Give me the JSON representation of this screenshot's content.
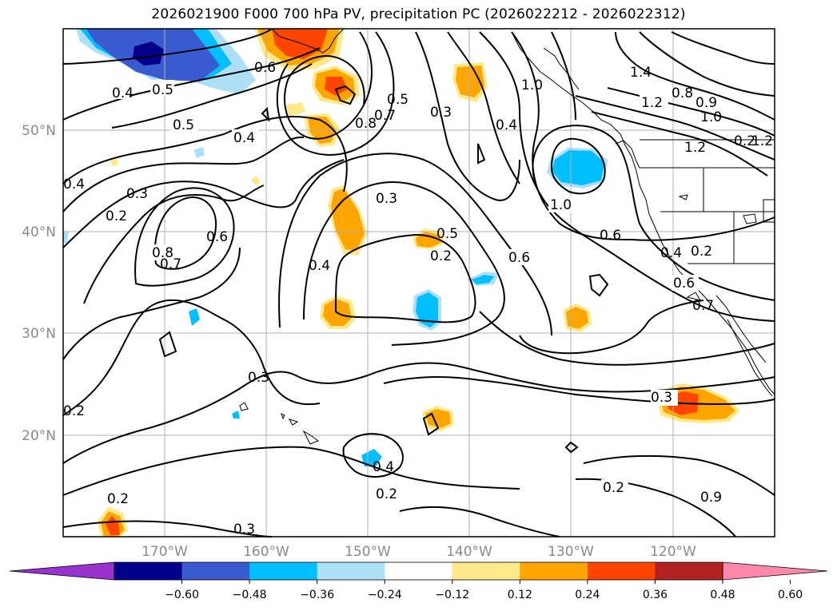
{
  "title": "2026021900 F000 700 hPa PV, precipitation PC (2026022212 - 2026022312)",
  "latitude_labels": [
    "50°N",
    "40°N",
    "30°N",
    "20°N"
  ],
  "longitude_labels": [
    "170°W",
    "160°W",
    "150°W",
    "140°W",
    "130°W",
    "120°W"
  ],
  "contour_labels": [
    "0.4",
    "0.5",
    "0.5",
    "0.6",
    "0.4",
    "0.4",
    "0.3",
    "0.2",
    "0.8",
    "0.7",
    "0.6",
    "0.5",
    "0.8",
    "0.7",
    "0.3",
    "0.4",
    "0.3",
    "0.5",
    "0.2",
    "0.4",
    "0.6",
    "1.0",
    "0.6",
    "0.4",
    "0.2",
    "0.6",
    "0.7",
    "0.3",
    "0.2",
    "0.4",
    "0.2",
    "0.3",
    "0.2",
    "0.2",
    "0.3",
    "0.9",
    "1.0",
    "1.4",
    "1.2",
    "0.8",
    "0.9",
    "1.0",
    "1.2",
    "0.2"
  ],
  "colorbar": {
    "ticks": [
      "−0.60",
      "−0.48",
      "−0.36",
      "−0.24",
      "−0.12",
      "0.12",
      "0.24",
      "0.36",
      "0.48",
      "0.60"
    ],
    "colors": [
      "#9932CC",
      "#00008B",
      "#3A5BD0",
      "#00BFFF",
      "#ADE0F7",
      "#FFFFFF",
      "#FFE98A",
      "#FFA500",
      "#FF4500",
      "#B22222",
      "#FF88AA"
    ]
  },
  "map": {
    "projection": "Plate Carrée",
    "region": "North Pacific",
    "lon_range": [
      "180°W",
      "110°W"
    ],
    "lat_range": [
      "10°N",
      "60°N"
    ],
    "grid": true
  }
}
